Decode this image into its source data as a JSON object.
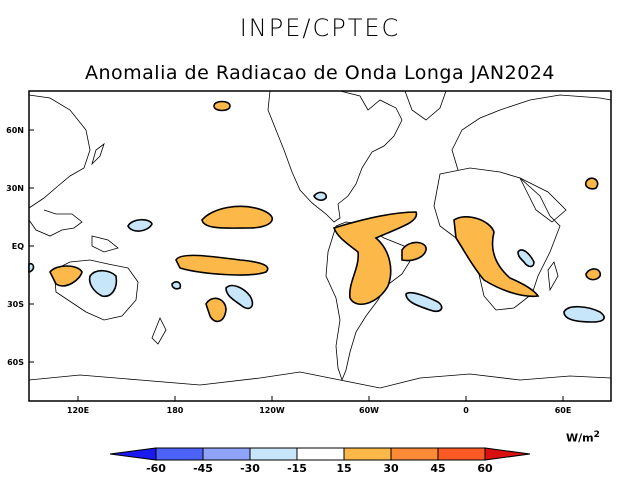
{
  "header": {
    "organization": "INPE/CPTEC",
    "title": "Anomalia de Radiacao de Onda Longa JAN2024"
  },
  "map": {
    "y_axis_labels": [
      "60N",
      "30N",
      "EQ",
      "30S",
      "60S"
    ],
    "x_axis_labels": [
      "120E",
      "180",
      "120W",
      "60W",
      "0",
      "60E"
    ],
    "units_base": "W/m",
    "units_exp": "2"
  },
  "colorbar": {
    "labels": [
      "-60",
      "-45",
      "-30",
      "-15",
      "15",
      "30",
      "45",
      "60"
    ],
    "colors": {
      "below_-60": "#1a1aee",
      "-60_-45": "#4d62f6",
      "-45_-30": "#8fa4f8",
      "-30_-15": "#c8e6fa",
      "-15_15": "#ffffff",
      "15_30": "#fdb84a",
      "30_45": "#fd8a36",
      "45_60": "#fc5a24",
      "above_60": "#d81010"
    }
  },
  "colors": {
    "positive_anomaly": "#fdb84a",
    "negative_anomaly": "#c8e6fa",
    "outline": "#000000"
  }
}
